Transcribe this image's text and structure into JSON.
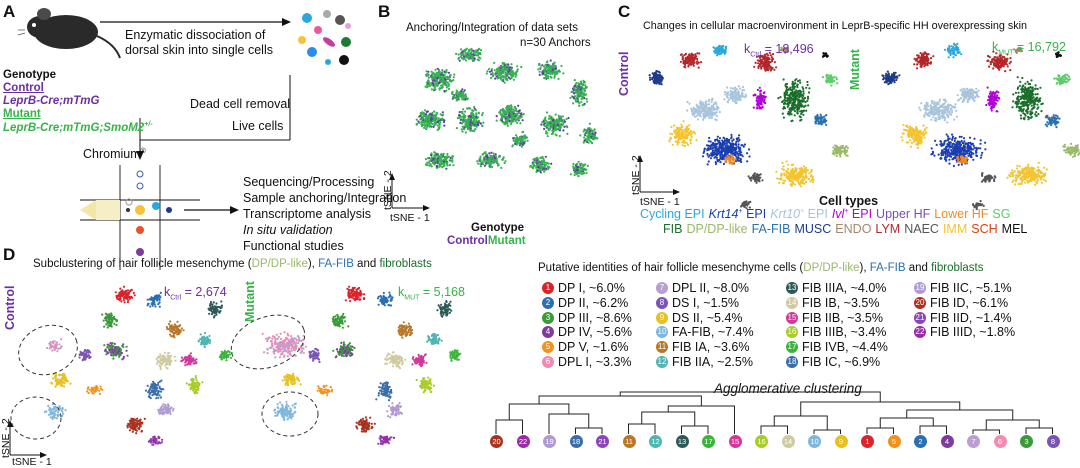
{
  "panelA": {
    "label": "A",
    "step1": [
      "Enzymatic dissociation of",
      "dorsal skin into single cells"
    ],
    "genotype_heading": "Genotype",
    "control": "Control",
    "control_geno": "LeprB-Cre;mTmG",
    "mutant": "Mutant",
    "mutant_geno": "LeprB-Cre;mTmG;SmoM2",
    "mutant_sup": "+/-",
    "dead_removal": "Dead cell removal",
    "live_cells": "Live cells",
    "chromium": "Chromium",
    "chromium_sup": "®",
    "steps": [
      "Sequencing/Processing",
      "Sample anchoring/Integration",
      "Transcriptome analysis",
      "In situ validation",
      "Functional studies"
    ]
  },
  "panelB": {
    "label": "B",
    "title": "Anchoring/Integration of data sets",
    "anchors": "n=30 Anchors",
    "ylab": "tSNE - 2",
    "xlab": "tSNE - 1",
    "legend_title": "Genotype",
    "legend_control": "Control",
    "legend_mutant": "Mutant"
  },
  "panelC": {
    "label": "C",
    "title": "Changes in cellular macroenvironment in LeprB-specific HH overexpressing skin",
    "control": "Control",
    "mutant": "Mutant",
    "k_ctrl": "k",
    "k_ctrl_sub": "Ctrl",
    "k_ctrl_val": "= 18,496",
    "k_mut": "k",
    "k_mut_sub": "MUT",
    "k_mut_val": "= 16,792",
    "ylab": "tSNE - 2",
    "xlab": "tSNE - 1",
    "cell_types_title": "Cell types",
    "row1": [
      {
        "text": "Cycling EPI",
        "color": "#29a8e0"
      },
      {
        "text": "Krt14",
        "sup": "+",
        "tail": " EPI",
        "color": "#1b3fb0"
      },
      {
        "text": "Krt10",
        "sup": "+",
        "tail": " EPI",
        "color": "#a9c4dd"
      },
      {
        "text": "Ivl",
        "sup": "+",
        "tail": " EPI",
        "color": "#b300d8"
      },
      {
        "text": "Upper HF",
        "color": "#7a4fb3"
      },
      {
        "text": "Lower HF",
        "color": "#f08a24"
      },
      {
        "text": "SG",
        "color": "#5ccc6a"
      }
    ],
    "row2": [
      {
        "text": "FIB",
        "color": "#1a6e2a"
      },
      {
        "text": "DP/DP-like",
        "color": "#9ab86a"
      },
      {
        "text": "FA-FIB",
        "color": "#2a6fae"
      },
      {
        "text": "MUSC",
        "color": "#1e3b8a"
      },
      {
        "text": "ENDO",
        "color": "#a5876a"
      },
      {
        "text": "LYM",
        "color": "#b3262a"
      },
      {
        "text": "NAEC",
        "color": "#555555"
      },
      {
        "text": "IMM",
        "color": "#f4c430"
      },
      {
        "text": "SCH",
        "color": "#d84315"
      },
      {
        "text": "MEL",
        "color": "#111111"
      }
    ]
  },
  "panelD": {
    "label": "D",
    "title_pre": "Subclustering of hair follicle mesenchyme (",
    "title_dp": "DP/DP-like",
    "title_mid": "), ",
    "title_fa": "FA-FIB",
    "title_and": " and ",
    "title_fib": "fibroblasts",
    "control": "Control",
    "mutant": "Mutant",
    "k_ctrl_val": "= 2,674",
    "k_mut_val": "= 5,168",
    "ylab": "tSNE - 2",
    "xlab": "tSNE - 1",
    "ident_title_pre": "Putative identities of hair follicle mesenchyme cells (",
    "ident_title_dp": "DP/DP-like",
    "ident_title_mid": "), ",
    "ident_title_fa": "FA-FIB",
    "ident_title_and": " and ",
    "ident_title_fib": "fibroblasts",
    "identities": [
      {
        "n": "1",
        "label": "DP I, ~6.0%",
        "color": "#d9242b"
      },
      {
        "n": "2",
        "label": "DP II, ~6.2%",
        "color": "#2b6fb3"
      },
      {
        "n": "3",
        "label": "DP III, ~8.6%",
        "color": "#3a9a3a"
      },
      {
        "n": "4",
        "label": "DP IV, ~5.6%",
        "color": "#7e3d9e"
      },
      {
        "n": "5",
        "label": "DP V, ~1.6%",
        "color": "#f0921c"
      },
      {
        "n": "6",
        "label": "DPL I, ~3.3%",
        "color": "#f08cb4"
      },
      {
        "n": "7",
        "label": "DPL II, ~8.0%",
        "color": "#b99fd0"
      },
      {
        "n": "8",
        "label": "DS I, ~1.5%",
        "color": "#7a55b5"
      },
      {
        "n": "9",
        "label": "DS II, ~5.4%",
        "color": "#e8c020"
      },
      {
        "n": "10",
        "label": "FA-FIB, ~7.4%",
        "color": "#7fb6dd"
      },
      {
        "n": "11",
        "label": "FIB IA, ~3.6%",
        "color": "#b8782a"
      },
      {
        "n": "12",
        "label": "FIB IIA, ~2.5%",
        "color": "#4fb6b0"
      },
      {
        "n": "13",
        "label": "FIB IIIA, ~4.0%",
        "color": "#2d5a58"
      },
      {
        "n": "14",
        "label": "FIB IB, ~3.5%",
        "color": "#cfcaa0"
      },
      {
        "n": "15",
        "label": "FIB IIB, ~3.5%",
        "color": "#d2389a"
      },
      {
        "n": "16",
        "label": "FIB IIIB, ~3.4%",
        "color": "#a8cc2a"
      },
      {
        "n": "17",
        "label": "FIB IVB, ~4.4%",
        "color": "#3cb43c"
      },
      {
        "n": "18",
        "label": "FIB IC, ~6.9%",
        "color": "#3a6ea8"
      },
      {
        "n": "19",
        "label": "FIB IIC, ~5.1%",
        "color": "#b09ad4"
      },
      {
        "n": "20",
        "label": "FIB ID, ~6.1%",
        "color": "#a8321e"
      },
      {
        "n": "21",
        "label": "FIB IID, ~1.4%",
        "color": "#8c45b8"
      },
      {
        "n": "22",
        "label": "FIB IIID, ~1.8%",
        "color": "#9c2aa8"
      }
    ],
    "agglomerative": "Agglomerative clustering",
    "dendro_order": [
      "20",
      "22",
      "19",
      "18",
      "21",
      "11",
      "12",
      "13",
      "17",
      "15",
      "16",
      "14",
      "10",
      "9",
      "1",
      "5",
      "2",
      "4",
      "7",
      "6",
      "3",
      "8"
    ]
  }
}
